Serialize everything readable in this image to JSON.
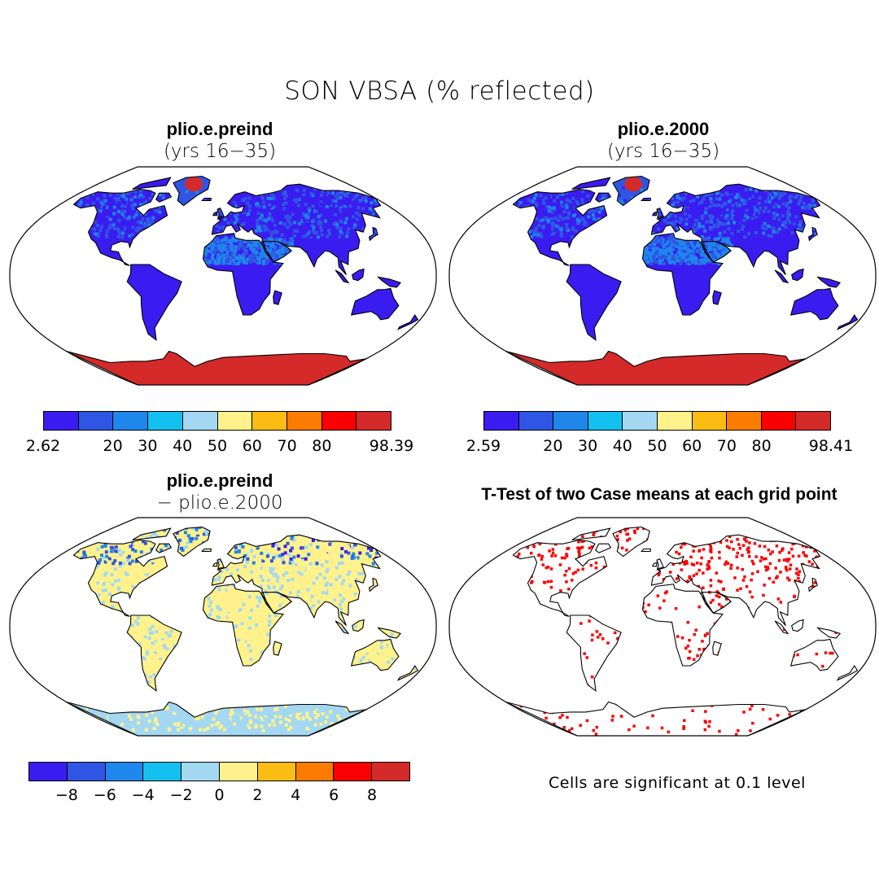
{
  "figure": {
    "title": "SON VBSA (% reflected)"
  },
  "panels": [
    {
      "id": "preind",
      "title": "plio.e.preind",
      "subtitle": "(yrs 16−35)"
    },
    {
      "id": "y2000",
      "title": "plio.e.2000",
      "subtitle": "(yrs 16−35)"
    },
    {
      "id": "diff",
      "title": "plio.e.preind",
      "subtitle": "− plio.e.2000"
    },
    {
      "id": "ttest",
      "title": "T-Test of two Case means at each grid point"
    }
  ],
  "colorbars": {
    "palette": [
      "#3a1cf0",
      "#2f55e4",
      "#1f86ec",
      "#14c0f0",
      "#a4d8f2",
      "#fff28c",
      "#fbbd14",
      "#fb7c00",
      "#fb0000",
      "#d42a2a"
    ],
    "abs_left_labels": [
      "2.62",
      "20",
      "30",
      "40",
      "50",
      "60",
      "70",
      "80",
      "98.39"
    ],
    "abs_right_labels": [
      "2.59",
      "20",
      "30",
      "40",
      "50",
      "60",
      "70",
      "80",
      "98.41"
    ],
    "diff_labels": [
      "−8",
      "−6",
      "−4",
      "−2",
      "0",
      "2",
      "4",
      "6",
      "8"
    ]
  },
  "ttest_note": "Cells are significant at 0.1 level",
  "colors": {
    "land_low": "#3a1cf0",
    "ice": "#d42a2a",
    "signif": "#fb0000",
    "diff_a": "#fff28c",
    "diff_b": "#a4d8f2"
  }
}
